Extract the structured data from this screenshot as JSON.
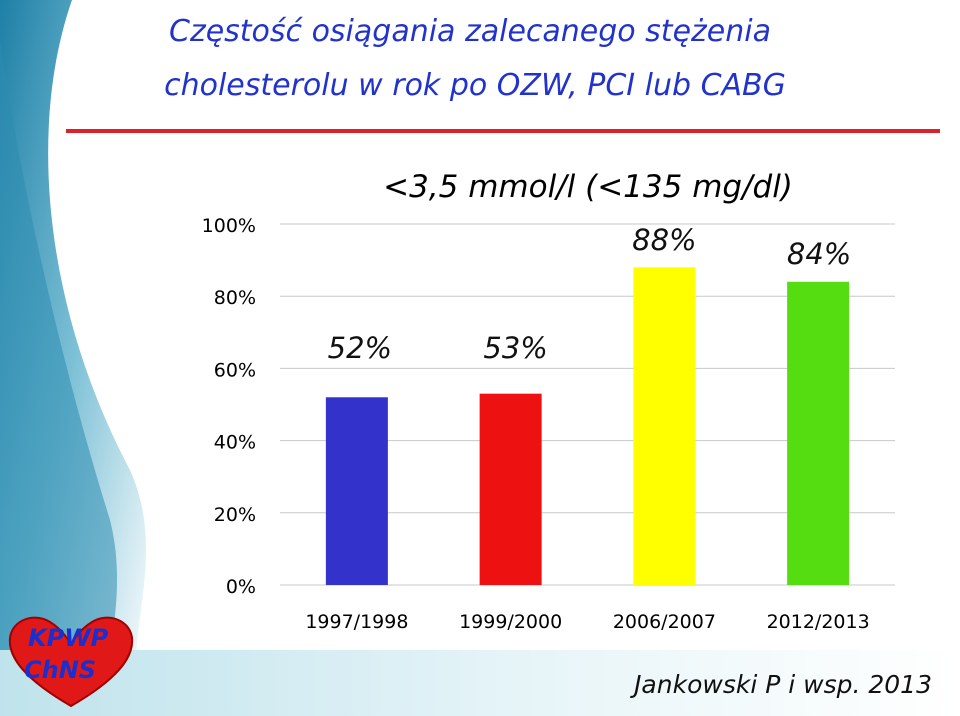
{
  "title": {
    "line1": "Częstość osiągania zalecanego stężenia",
    "line2": "cholesterolu w rok po OZW, PCI lub CABG"
  },
  "colors": {
    "title": "#2233cc",
    "rule": "#d8232a",
    "bar_1": "#3333cc",
    "bar_2": "#ee1111",
    "bar_3": "#ffff00",
    "bar_4": "#55dd11",
    "grid": "#c8c8c8",
    "deco_teal": "#3a9ab8"
  },
  "chart_data": {
    "type": "bar",
    "title": "<3,5 mmol/l (<135 mg/dl)",
    "categories": [
      "1997/1998",
      "1999/2000",
      "2006/2007",
      "2012/2013"
    ],
    "values": [
      52,
      53,
      88,
      84
    ],
    "data_labels": [
      "52%",
      "53%",
      "88%",
      "84%"
    ],
    "ylim": [
      0,
      100
    ],
    "yticks": [
      "0%",
      "20%",
      "40%",
      "60%",
      "80%",
      "100%"
    ],
    "ytick_values": [
      0,
      20,
      40,
      60,
      80,
      100
    ],
    "grid": true,
    "legend": "none"
  },
  "logo": {
    "line1": "KPWP",
    "line2": "ChNS"
  },
  "footer": {
    "author": "Jankowski P i wsp. 2013"
  }
}
